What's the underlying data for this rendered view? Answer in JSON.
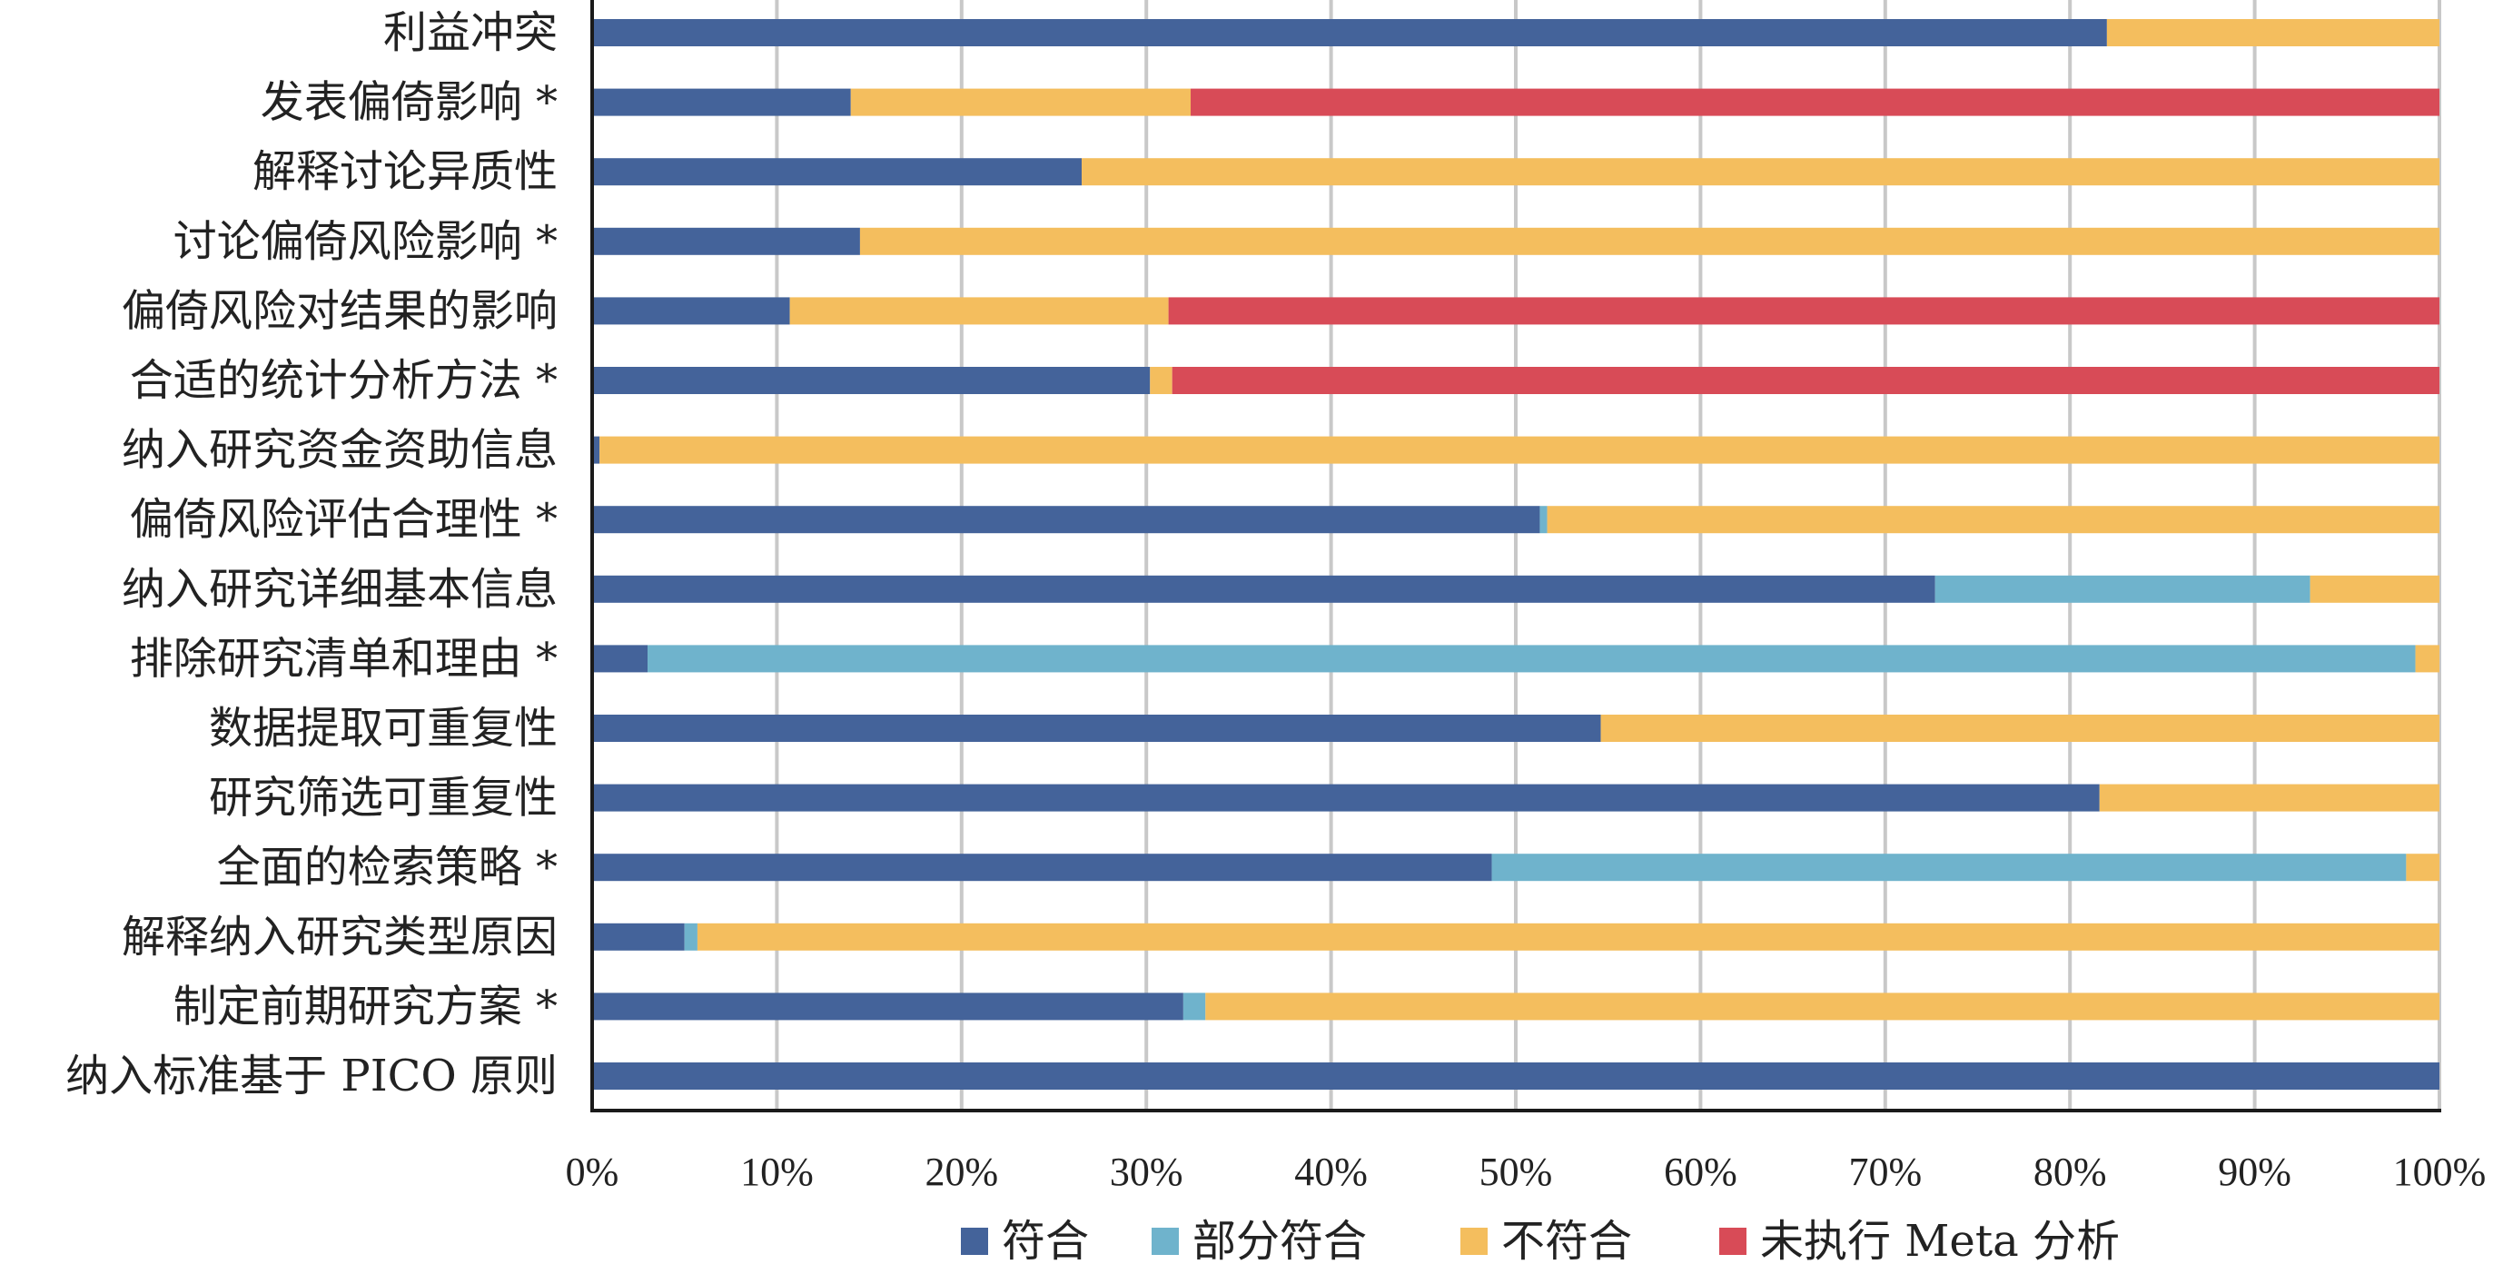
{
  "chart_data": {
    "type": "bar",
    "orientation": "horizontal",
    "stacked": true,
    "percent": true,
    "categories": [
      "利益冲突",
      "发表偏倚影响 *",
      "解释讨论异质性",
      "讨论偏倚风险影响 *",
      "偏倚风险对结果的影响",
      "合适的统计分析方法 *",
      "纳入研究资金资助信息",
      "偏倚风险评估合理性 *",
      "纳入研究详细基本信息",
      "排除研究清单和理由 *",
      "数据提取可重复性",
      "研究筛选可重复性",
      "全面的检索策略 *",
      "解释纳入研究类型原因",
      "制定前期研究方案 *",
      "纳入标准基于 PICO 原则"
    ],
    "series": [
      {
        "name": "符合",
        "color": "#44639a",
        "values": [
          82,
          14,
          26.5,
          14.5,
          10.7,
          30.2,
          0.4,
          51.3,
          72.7,
          3,
          54.6,
          81.6,
          48.7,
          5,
          32,
          100
        ]
      },
      {
        "name": "部分符合",
        "color": "#6fb3cc",
        "values": [
          0,
          0,
          0,
          0,
          0,
          0,
          0,
          0.4,
          20.3,
          95.7,
          0,
          0,
          49.5,
          0.7,
          1.2,
          0
        ]
      },
      {
        "name": "不符合",
        "color": "#f4be5e",
        "values": [
          18,
          18.4,
          73.5,
          85.5,
          20.5,
          1.2,
          99.6,
          48.3,
          7,
          1.3,
          45.4,
          18.4,
          1.8,
          94.3,
          66.8,
          0
        ]
      },
      {
        "name": "未执行 Meta 分析",
        "color": "#d84b57",
        "values": [
          0,
          67.6,
          0,
          0,
          68.8,
          68.6,
          0,
          0,
          0,
          0,
          0,
          0,
          0,
          0,
          0,
          0
        ]
      }
    ],
    "xlim": [
      0,
      100
    ],
    "x_ticks": [
      "0%",
      "10%",
      "20%",
      "30%",
      "40%",
      "50%",
      "60%",
      "70%",
      "80%",
      "90%",
      "100%"
    ],
    "grid": true,
    "legend_position": "bottom"
  }
}
